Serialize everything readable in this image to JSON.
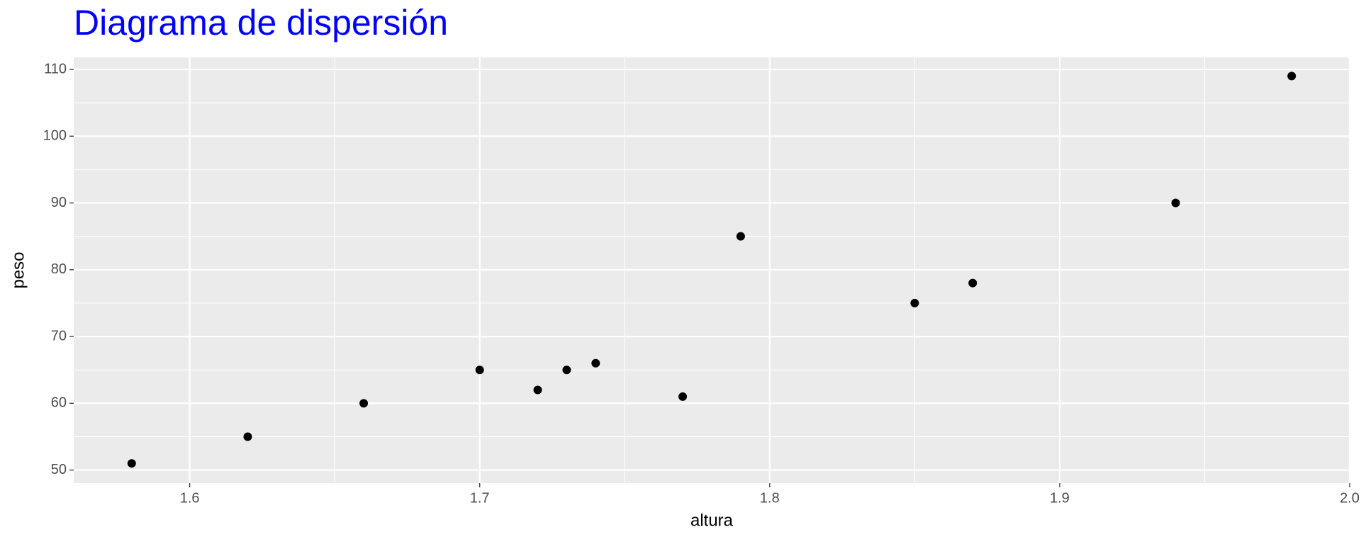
{
  "chart_data": {
    "type": "scatter",
    "title": "Diagrama de dispersión",
    "x_label": "altura",
    "y_label": "peso",
    "x": [
      1.58,
      1.62,
      1.66,
      1.7,
      1.72,
      1.73,
      1.74,
      1.77,
      1.79,
      1.85,
      1.87,
      1.94,
      1.98
    ],
    "values": [
      51,
      55,
      60,
      65,
      62,
      65,
      66,
      61,
      85,
      75,
      78,
      90,
      109
    ],
    "color": "#000000",
    "title_color": "#0000ff",
    "xlim": [
      1.56,
      2.0
    ],
    "ylim": [
      48.05,
      111.8
    ],
    "xticks": [
      1.6,
      1.7,
      1.8,
      1.9,
      {
        "value": 2,
        "label": "2.0"
      }
    ],
    "yticks": [
      50,
      60,
      70,
      80,
      90,
      100,
      110
    ],
    "grid": true
  }
}
